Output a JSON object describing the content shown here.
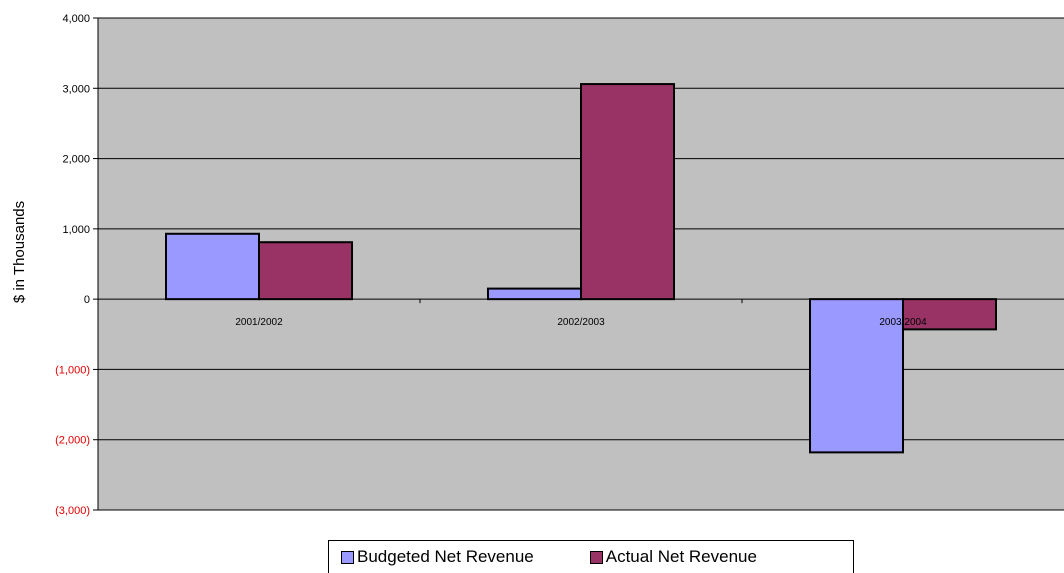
{
  "chart_data": {
    "type": "bar",
    "categories": [
      "2001/2002",
      "2002/2003",
      "2003/2004"
    ],
    "series": [
      {
        "name": "Budgeted Net Revenue",
        "values": [
          930,
          150,
          -2180
        ],
        "color": "#9999ff"
      },
      {
        "name": "Actual Net Revenue",
        "values": [
          810,
          3060,
          -430
        ],
        "color": "#993366"
      }
    ],
    "ylabel": "$ in Thousands",
    "ylim": [
      -3000,
      4000
    ],
    "yticks": [
      4000,
      3000,
      2000,
      1000,
      0,
      -1000,
      -2000,
      -3000
    ],
    "ytick_labels": [
      "4,000",
      "3,000",
      "2,000",
      "1,000",
      "0",
      "(1,000)",
      "(2,000)",
      "(3,000)"
    ],
    "negative_tick_color": "#e00000",
    "plot_background": "#c0c0c0",
    "grid": true,
    "legend_position": "bottom"
  }
}
